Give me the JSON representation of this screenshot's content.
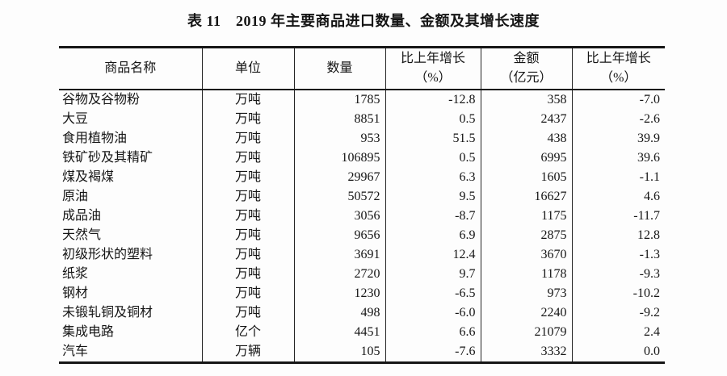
{
  "page": {
    "background": "#fdfdfd",
    "text_color": "#151515",
    "border_color": "#161616"
  },
  "title": "表 11　2019 年主要商品进口数量、金额及其增长速度",
  "table": {
    "columns": [
      {
        "label": "商品名称",
        "align": "left"
      },
      {
        "label": "单位",
        "align": "center"
      },
      {
        "label": "数量",
        "align": "right"
      },
      {
        "label": "比上年增长\n（%）",
        "align": "right"
      },
      {
        "label": "金额\n（亿元）",
        "align": "right"
      },
      {
        "label": "比上年增长\n（%）",
        "align": "right"
      }
    ],
    "rows": [
      [
        "谷物及谷物粉",
        "万吨",
        "1785",
        "-12.8",
        "358",
        "-7.0"
      ],
      [
        "大豆",
        "万吨",
        "8851",
        "0.5",
        "2437",
        "-2.6"
      ],
      [
        "食用植物油",
        "万吨",
        "953",
        "51.5",
        "438",
        "39.9"
      ],
      [
        "铁矿砂及其精矿",
        "万吨",
        "106895",
        "0.5",
        "6995",
        "39.6"
      ],
      [
        "煤及褐煤",
        "万吨",
        "29967",
        "6.3",
        "1605",
        "-1.1"
      ],
      [
        "原油",
        "万吨",
        "50572",
        "9.5",
        "16627",
        "4.6"
      ],
      [
        "成品油",
        "万吨",
        "3056",
        "-8.7",
        "1175",
        "-11.7"
      ],
      [
        "天然气",
        "万吨",
        "9656",
        "6.9",
        "2875",
        "12.8"
      ],
      [
        "初级形状的塑料",
        "万吨",
        "3691",
        "12.4",
        "3670",
        "-1.3"
      ],
      [
        "纸浆",
        "万吨",
        "2720",
        "9.7",
        "1178",
        "-9.3"
      ],
      [
        "钢材",
        "万吨",
        "1230",
        "-6.5",
        "973",
        "-10.2"
      ],
      [
        "未锻轧铜及铜材",
        "万吨",
        "498",
        "-6.0",
        "2240",
        "-9.2"
      ],
      [
        "集成电路",
        "亿个",
        "4451",
        "6.6",
        "21079",
        "2.4"
      ],
      [
        "汽车",
        "万辆",
        "105",
        "-7.6",
        "3332",
        "0.0"
      ]
    ]
  }
}
